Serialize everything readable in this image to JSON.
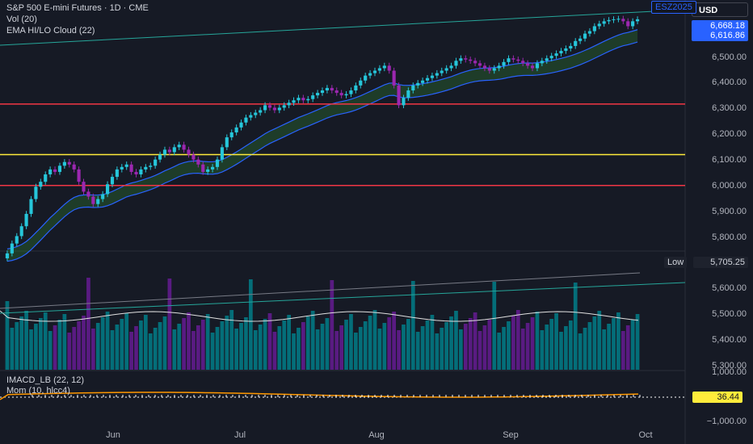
{
  "header": {
    "title": "S&P 500 E-mini Futures · 1D · CME",
    "vol": "Vol (20)",
    "ema": "EMA HI/LO Cloud (22)",
    "currency": "USD",
    "symbol_tag": "ESZ2025"
  },
  "price_axis": {
    "labels": [
      "6,500.00",
      "6,400.00",
      "6,300.00",
      "6,200.00",
      "6,100.00",
      "6,000.00",
      "5,900.00",
      "5,800.00",
      "5,600.00",
      "5,500.00",
      "5,400.00",
      "5,300.00"
    ],
    "tag_upper": "6,668.18",
    "tag_lower": "6,616.86",
    "low_label": "Low",
    "low_value": "5,705.25"
  },
  "indicators": {
    "imacd": "IMACD_LB (22, 12)",
    "mom": "Mom (10, hlcc4)",
    "mom_value": "36.44",
    "top_tick": "1,000.00",
    "bottom_tick": "−1,000.00"
  },
  "time_axis": {
    "labels": [
      "Jun",
      "Jul",
      "Aug",
      "Sep",
      "Oct"
    ]
  },
  "colors": {
    "background": "#161a25",
    "up_candle": "#26c6da",
    "down_candle": "#9c27b0",
    "ema_line": "#2962ff",
    "cloud": "#2e7d32",
    "red_level": "#f23645",
    "yellow_level": "#ffeb3b",
    "mom_tag": "#ffeb3b"
  },
  "chart_data": {
    "type": "candlestick",
    "symbol": "ESZ2025",
    "timeframe": "1D",
    "ylim": [
      5700,
      6720
    ],
    "horizontal_levels": [
      6325,
      6120,
      5995
    ],
    "closes": [
      5720,
      5760,
      5790,
      5830,
      5880,
      5940,
      5990,
      6010,
      6040,
      6060,
      6050,
      6075,
      6090,
      6080,
      6060,
      6010,
      5970,
      5950,
      5920,
      5940,
      5960,
      6000,
      6030,
      6060,
      6070,
      6080,
      6050,
      6040,
      6060,
      6070,
      6075,
      6100,
      6120,
      6140,
      6130,
      6150,
      6160,
      6140,
      6120,
      6100,
      6080,
      6050,
      6060,
      6070,
      6100,
      6150,
      6190,
      6210,
      6230,
      6250,
      6270,
      6280,
      6290,
      6300,
      6320,
      6310,
      6300,
      6310,
      6320,
      6330,
      6340,
      6350,
      6340,
      6345,
      6360,
      6370,
      6380,
      6390,
      6380,
      6370,
      6360,
      6365,
      6380,
      6400,
      6420,
      6440,
      6450,
      6460,
      6470,
      6480,
      6460,
      6400,
      6320,
      6350,
      6380,
      6400,
      6410,
      6420,
      6430,
      6440,
      6450,
      6460,
      6470,
      6480,
      6500,
      6510,
      6505,
      6500,
      6490,
      6480,
      6470,
      6460,
      6470,
      6480,
      6495,
      6510,
      6505,
      6500,
      6490,
      6480,
      6470,
      6490,
      6500,
      6510,
      6520,
      6530,
      6540,
      6550,
      6560,
      6580,
      6590,
      6610,
      6620,
      6640,
      6650,
      6660,
      6665,
      6668,
      6670,
      6660,
      6640,
      6660,
      6668
    ]
  }
}
